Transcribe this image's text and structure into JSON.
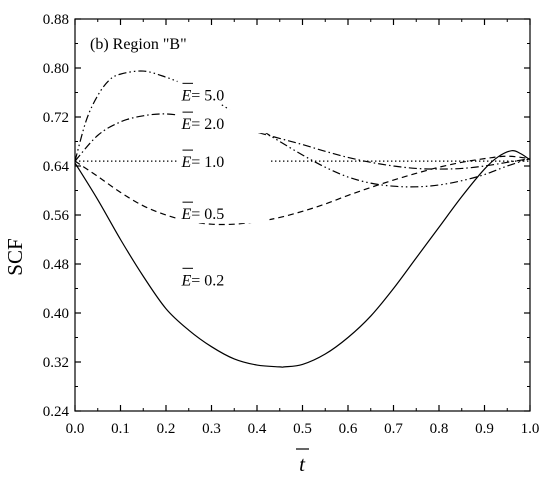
{
  "chart_data": {
    "type": "line",
    "panel_title": "(b) Region \"B\"",
    "xlabel": "t",
    "ylabel": "SCF",
    "xlim": [
      0.0,
      1.0
    ],
    "ylim": [
      0.24,
      0.88
    ],
    "x_ticks": [
      0.0,
      0.1,
      0.2,
      0.3,
      0.4,
      0.5,
      0.6,
      0.7,
      0.8,
      0.9,
      1.0
    ],
    "x_tick_labels": [
      "0.0",
      "0.1",
      "0.2",
      "0.3",
      "0.4",
      "0.5",
      "0.6",
      "0.7",
      "0.8",
      "0.9",
      "1.0"
    ],
    "y_ticks": [
      0.24,
      0.32,
      0.4,
      0.48,
      0.56,
      0.64,
      0.72,
      0.8,
      0.88
    ],
    "y_tick_labels": [
      "0.24",
      "0.32",
      "0.40",
      "0.48",
      "0.56",
      "0.64",
      "0.72",
      "0.80",
      "0.88"
    ],
    "grid": false,
    "series": [
      {
        "name": "E = 0.2",
        "label_var": "E",
        "label_rest": "= 0.2",
        "dash": "solid",
        "x": [
          0.0,
          0.05,
          0.1,
          0.15,
          0.2,
          0.25,
          0.3,
          0.35,
          0.4,
          0.45,
          0.46,
          0.5,
          0.55,
          0.6,
          0.65,
          0.7,
          0.75,
          0.8,
          0.85,
          0.9,
          0.93,
          0.96,
          0.98,
          1.0
        ],
        "y": [
          0.645,
          0.585,
          0.52,
          0.46,
          0.407,
          0.372,
          0.345,
          0.325,
          0.315,
          0.312,
          0.312,
          0.316,
          0.333,
          0.36,
          0.395,
          0.44,
          0.49,
          0.54,
          0.59,
          0.635,
          0.655,
          0.665,
          0.66,
          0.65
        ]
      },
      {
        "name": "E = 0.5",
        "label_var": "E",
        "label_rest": "= 0.5",
        "dash": "dashed",
        "x": [
          0.0,
          0.05,
          0.1,
          0.15,
          0.2,
          0.25,
          0.3,
          0.35,
          0.4,
          0.45,
          0.5,
          0.55,
          0.6,
          0.65,
          0.7,
          0.75,
          0.8,
          0.85,
          0.9,
          0.95,
          1.0
        ],
        "y": [
          0.648,
          0.623,
          0.597,
          0.575,
          0.56,
          0.55,
          0.545,
          0.545,
          0.549,
          0.556,
          0.566,
          0.578,
          0.592,
          0.605,
          0.617,
          0.628,
          0.638,
          0.646,
          0.652,
          0.656,
          0.652
        ]
      },
      {
        "name": "E = 1.0",
        "label_var": "E",
        "label_rest": "= 1.0",
        "dash": "dotted",
        "x": [
          0.0,
          1.0
        ],
        "y": [
          0.648,
          0.648
        ]
      },
      {
        "name": "E = 2.0",
        "label_var": "E",
        "label_rest": "= 2.0",
        "dash": "dashdot",
        "x": [
          0.0,
          0.05,
          0.1,
          0.15,
          0.2,
          0.25,
          0.3,
          0.35,
          0.4,
          0.45,
          0.5,
          0.55,
          0.6,
          0.65,
          0.7,
          0.75,
          0.8,
          0.85,
          0.9,
          0.95,
          1.0
        ],
        "y": [
          0.648,
          0.69,
          0.712,
          0.722,
          0.725,
          0.72,
          0.712,
          0.704,
          0.695,
          0.685,
          0.675,
          0.664,
          0.654,
          0.646,
          0.64,
          0.636,
          0.635,
          0.636,
          0.64,
          0.646,
          0.652
        ]
      },
      {
        "name": "E = 5.0",
        "label_var": "E",
        "label_rest": "= 5.0",
        "dash": "dashdotdot",
        "x": [
          0.0,
          0.025,
          0.05,
          0.075,
          0.1,
          0.15,
          0.2,
          0.25,
          0.3,
          0.35,
          0.4,
          0.45,
          0.5,
          0.55,
          0.6,
          0.65,
          0.7,
          0.75,
          0.8,
          0.85,
          0.9,
          0.95,
          1.0
        ],
        "y": [
          0.648,
          0.715,
          0.755,
          0.78,
          0.79,
          0.795,
          0.785,
          0.77,
          0.75,
          0.727,
          0.703,
          0.68,
          0.658,
          0.638,
          0.622,
          0.612,
          0.607,
          0.606,
          0.609,
          0.616,
          0.626,
          0.64,
          0.652
        ]
      }
    ],
    "annotations": [
      {
        "series_index": 4,
        "x": 0.3,
        "y": 0.757
      },
      {
        "series_index": 3,
        "x": 0.3,
        "y": 0.71
      },
      {
        "series_index": 2,
        "x": 0.3,
        "y": 0.648
      },
      {
        "series_index": 1,
        "x": 0.3,
        "y": 0.563
      },
      {
        "series_index": 0,
        "x": 0.3,
        "y": 0.455
      }
    ]
  }
}
